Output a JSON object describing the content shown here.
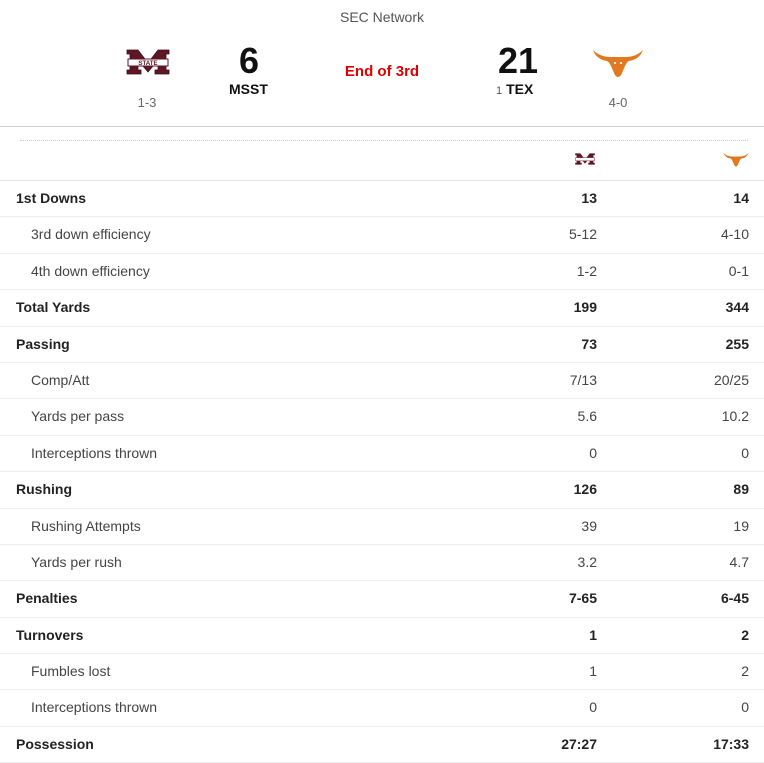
{
  "network": "SEC Network",
  "away": {
    "abbr": "MSST",
    "score": "6",
    "record": "1-3",
    "logo": "mississippi-state-m-logo",
    "color": "#5d1725"
  },
  "home": {
    "abbr": "TEX",
    "rank": "1",
    "score": "21",
    "record": "4-0",
    "logo": "texas-longhorn-logo",
    "color": "#e07a20"
  },
  "status": "End of 3rd",
  "status_color": "#dd0000",
  "stats": [
    {
      "label": "1st Downs",
      "away": "13",
      "home": "14",
      "level": "main"
    },
    {
      "label": "3rd down efficiency",
      "away": "5-12",
      "home": "4-10",
      "level": "sub"
    },
    {
      "label": "4th down efficiency",
      "away": "1-2",
      "home": "0-1",
      "level": "sub"
    },
    {
      "label": "Total Yards",
      "away": "199",
      "home": "344",
      "level": "main"
    },
    {
      "label": "Passing",
      "away": "73",
      "home": "255",
      "level": "main"
    },
    {
      "label": "Comp/Att",
      "away": "7/13",
      "home": "20/25",
      "level": "sub"
    },
    {
      "label": "Yards per pass",
      "away": "5.6",
      "home": "10.2",
      "level": "sub"
    },
    {
      "label": "Interceptions thrown",
      "away": "0",
      "home": "0",
      "level": "sub"
    },
    {
      "label": "Rushing",
      "away": "126",
      "home": "89",
      "level": "main"
    },
    {
      "label": "Rushing Attempts",
      "away": "39",
      "home": "19",
      "level": "sub"
    },
    {
      "label": "Yards per rush",
      "away": "3.2",
      "home": "4.7",
      "level": "sub"
    },
    {
      "label": "Penalties",
      "away": "7-65",
      "home": "6-45",
      "level": "main"
    },
    {
      "label": "Turnovers",
      "away": "1",
      "home": "2",
      "level": "main"
    },
    {
      "label": "Fumbles lost",
      "away": "1",
      "home": "2",
      "level": "sub"
    },
    {
      "label": "Interceptions thrown",
      "away": "0",
      "home": "0",
      "level": "sub"
    },
    {
      "label": "Possession",
      "away": "27:27",
      "home": "17:33",
      "level": "main"
    }
  ]
}
